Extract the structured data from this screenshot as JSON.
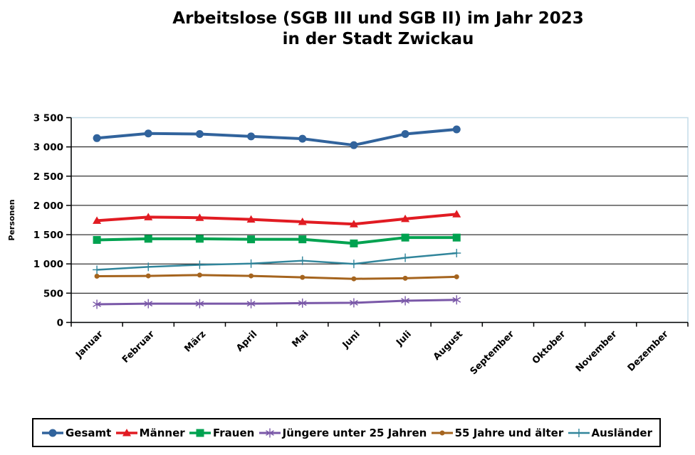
{
  "title": {
    "line1": "Arbeitslose (SGB III und SGB II) im Jahr 2023",
    "line2": "in der Stadt Zwickau"
  },
  "chart_data": {
    "type": "line",
    "title": "Arbeitslose (SGB III und SGB II) im Jahr 2023 in der Stadt Zwickau",
    "xlabel": "",
    "ylabel": "Personen",
    "ylim": [
      0,
      3500
    ],
    "ytick_step": 500,
    "ytick_labels": [
      "0",
      "500",
      "1 000",
      "1 500",
      "2 000",
      "2 500",
      "3 000",
      "3 500"
    ],
    "categories": [
      "Januar",
      "Februar",
      "März",
      "April",
      "Mai",
      "Juni",
      "Juli",
      "August",
      "September",
      "Oktober",
      "November",
      "Dezember"
    ],
    "grid": "horizontal-black-on-white",
    "plot_border_color": "#c4dce8",
    "axis_color": "#000000",
    "legend_position": "bottom",
    "series": [
      {
        "name": "Gesamt",
        "color": "#31639c",
        "marker": "circle",
        "line_width": 4,
        "values": [
          3150,
          3230,
          3220,
          3180,
          3140,
          3030,
          3220,
          3300
        ]
      },
      {
        "name": "Männer",
        "color": "#e11b22",
        "marker": "triangle",
        "line_width": 4,
        "values": [
          1740,
          1800,
          1790,
          1760,
          1720,
          1680,
          1770,
          1850
        ]
      },
      {
        "name": "Frauen",
        "color": "#00a250",
        "marker": "square",
        "line_width": 4,
        "values": [
          1410,
          1430,
          1430,
          1420,
          1420,
          1350,
          1450,
          1450
        ]
      },
      {
        "name": "Jüngere unter 25 Jahren",
        "color": "#7a58a8",
        "marker": "asterisk",
        "line_width": 3,
        "values": [
          310,
          320,
          320,
          320,
          330,
          335,
          370,
          385
        ]
      },
      {
        "name": "55 Jahre und älter",
        "color": "#a5641e",
        "marker": "dot",
        "line_width": 3,
        "values": [
          790,
          795,
          810,
          795,
          770,
          745,
          755,
          780
        ]
      },
      {
        "name": "Ausländer",
        "color": "#31859b",
        "marker": "plus",
        "line_width": 2.5,
        "values": [
          900,
          950,
          985,
          1005,
          1055,
          1000,
          1105,
          1185
        ]
      }
    ]
  }
}
